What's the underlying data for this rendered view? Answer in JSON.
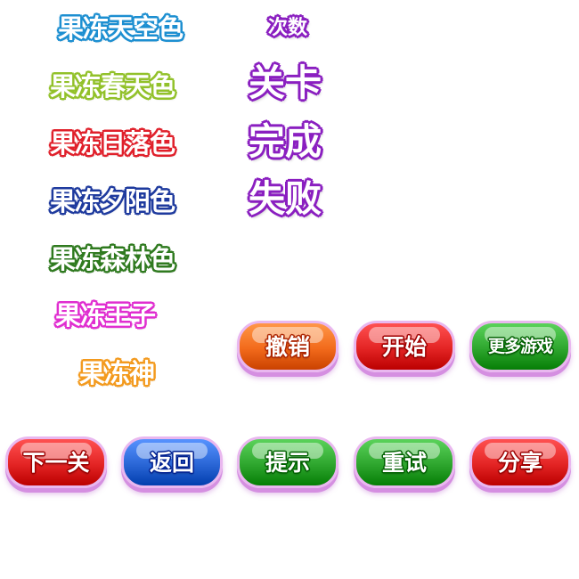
{
  "colors_labels": [
    {
      "text": "果冻天空色",
      "color": "#1d8fd1"
    },
    {
      "text": "果冻春天色",
      "color": "#92c12a"
    },
    {
      "text": "果冻日落色",
      "color": "#e0202b"
    },
    {
      "text": "果冻夕阳色",
      "color": "#1e3a9e"
    },
    {
      "text": "果冻森林色",
      "color": "#2f7a1f"
    },
    {
      "text": "果冻王子",
      "color": "#e02ed0"
    },
    {
      "text": "果冻神",
      "color": "#f39a1e"
    }
  ],
  "titles": [
    {
      "text": "次数"
    },
    {
      "text": "关卡"
    },
    {
      "text": "完成"
    },
    {
      "text": "失败"
    }
  ],
  "title_color": "#8a1fc0",
  "buttons": {
    "undo": {
      "text": "撤销",
      "color": "#f26a1b"
    },
    "start": {
      "text": "开始",
      "color": "#e32424"
    },
    "more_games": {
      "text": "更多游戏",
      "color": "#2ea62e"
    },
    "next_level": {
      "text": "下一关",
      "color": "#e32424"
    },
    "back": {
      "text": "返回",
      "color": "#2a66d6"
    },
    "hint": {
      "text": "提示",
      "color": "#2ea62e"
    },
    "retry": {
      "text": "重试",
      "color": "#2ea62e"
    },
    "share": {
      "text": "分享",
      "color": "#e32424"
    }
  }
}
